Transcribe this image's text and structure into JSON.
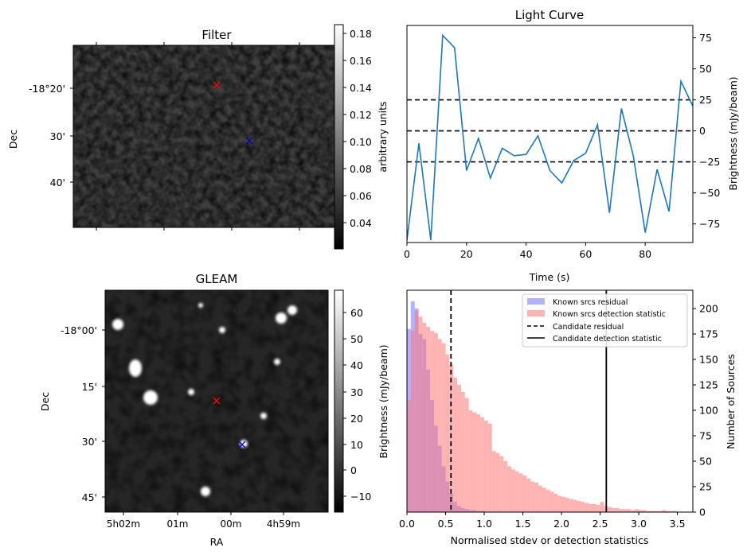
{
  "colors": {
    "line": "#1f77b4",
    "hist_known_residual": "#6666ff",
    "hist_known_detection": "#ff7777",
    "marker_red": "#ff0000",
    "marker_blue": "#0000cc"
  },
  "filter_panel": {
    "title": "Filter",
    "ylabel": "Dec",
    "yticks": [
      "-18°20'",
      "30'",
      "40'"
    ],
    "colorbar_label": "arbitrary units",
    "colorbar_ticks": [
      "0.18",
      "0.16",
      "0.14",
      "0.12",
      "0.10",
      "0.08",
      "0.06",
      "0.04"
    ]
  },
  "gleam_panel": {
    "title": "GLEAM",
    "xlabel": "RA",
    "ylabel": "Dec",
    "yticks": [
      "-18°00'",
      "15'",
      "30'",
      "45'"
    ],
    "xticks": [
      "5h02m",
      "01m",
      "00m",
      "4h59m"
    ],
    "colorbar_label": "Brightness (mJy/beam)",
    "colorbar_ticks": [
      "60",
      "50",
      "40",
      "30",
      "20",
      "10",
      "0",
      "−10"
    ]
  },
  "light_curve_panel": {
    "title": "Light Curve",
    "xlabel": "Time (s)",
    "ylabel": "Brightness (mJy/beam)",
    "xticks": [
      "0",
      "20",
      "40",
      "60",
      "80"
    ],
    "yticks": [
      "75",
      "50",
      "25",
      "0",
      "−25",
      "−50",
      "−75"
    ]
  },
  "histogram_panel": {
    "xlabel": "Normalised stdev or detection statistics",
    "ylabel_left": "Brightness (mJy/beam)",
    "ylabel_right": "Number of Sources",
    "xticks": [
      "0.0",
      "0.5",
      "1.0",
      "1.5",
      "2.0",
      "2.5",
      "3.0",
      "3.5"
    ],
    "yticks": [
      "0",
      "25",
      "50",
      "75",
      "100",
      "125",
      "150",
      "175",
      "200"
    ],
    "legend": [
      {
        "label": "Known srcs residual",
        "style": "patch-blue"
      },
      {
        "label": "Known srcs detection statistic",
        "style": "patch-red"
      },
      {
        "label": "Candidate residual",
        "style": "dashed-line"
      },
      {
        "label": "Candidate detection statistic",
        "style": "solid-line"
      }
    ]
  },
  "chart_data": [
    {
      "type": "heatmap",
      "title": "Filter",
      "ylabel": "Dec",
      "colorbar_range": [
        0.025,
        0.185
      ],
      "colorbar_label": "arbitrary units",
      "markers": [
        {
          "symbol": "x",
          "color": "red"
        },
        {
          "symbol": "x",
          "color": "blue"
        }
      ]
    },
    {
      "type": "heatmap",
      "title": "GLEAM",
      "xlabel": "RA",
      "ylabel": "Dec",
      "colorbar_range": [
        -15,
        67
      ],
      "colorbar_label": "Brightness (mJy/beam)",
      "markers": [
        {
          "symbol": "x",
          "color": "red"
        },
        {
          "symbol": "x",
          "color": "blue"
        }
      ]
    },
    {
      "type": "line",
      "title": "Light Curve",
      "xlabel": "Time (s)",
      "ylabel": "Brightness (mJy/beam)",
      "xlim": [
        0,
        96
      ],
      "ylim": [
        -90,
        85
      ],
      "x": [
        0,
        4,
        8,
        12,
        16,
        20,
        24,
        28,
        32,
        36,
        40,
        44,
        48,
        52,
        56,
        60,
        64,
        68,
        72,
        76,
        80,
        84,
        88,
        92,
        96
      ],
      "y": [
        -88,
        -10,
        -88,
        77,
        67,
        -32,
        -6,
        -38,
        -14,
        -20,
        -19,
        -4,
        -32,
        -42,
        -24,
        -18,
        5,
        -66,
        18,
        -20,
        -82,
        -31,
        -65,
        40,
        20
      ],
      "hlines": [
        {
          "y": 25,
          "style": "dashed"
        },
        {
          "y": 0,
          "style": "dashed"
        },
        {
          "y": -25,
          "style": "dashed"
        }
      ]
    },
    {
      "type": "bar",
      "xlabel": "Normalised stdev or detection statistics",
      "ylabel": "Number of Sources",
      "xlim": [
        0,
        3.7
      ],
      "ylim": [
        0,
        218
      ],
      "bin_width": 0.05,
      "series": [
        {
          "name": "Known srcs residual",
          "bin_start": 0,
          "values": [
            180,
            207,
            200,
            175,
            170,
            140,
            110,
            85,
            65,
            45,
            30,
            18,
            10,
            6,
            4,
            3,
            2,
            2,
            1,
            1
          ]
        },
        {
          "name": "Known srcs detection statistic",
          "bin_start": 0,
          "values": [
            110,
            178,
            198,
            192,
            186,
            182,
            178,
            176,
            170,
            166,
            155,
            145,
            132,
            125,
            118,
            112,
            100,
            98,
            96,
            93,
            90,
            87,
            60,
            58,
            55,
            50,
            45,
            42,
            40,
            38,
            36,
            33,
            30,
            29,
            26,
            24,
            22,
            20,
            18,
            16,
            15,
            14,
            13,
            12,
            11,
            10,
            9,
            8,
            8,
            7,
            10,
            6,
            5,
            4,
            4,
            3,
            3,
            3,
            2,
            3,
            2,
            2,
            1,
            1,
            1,
            1,
            2,
            1,
            1,
            1
          ]
        }
      ],
      "vlines": [
        {
          "name": "Candidate residual",
          "x": 0.57,
          "style": "dashed"
        },
        {
          "name": "Candidate detection statistic",
          "x": 2.58,
          "style": "solid"
        }
      ]
    }
  ]
}
